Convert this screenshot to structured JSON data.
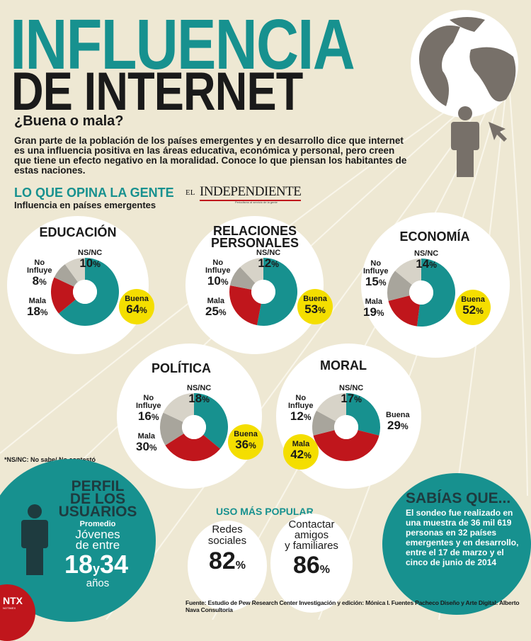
{
  "header": {
    "title_line1": "INFLUENCIA",
    "title_line2": "DE INTERNET",
    "subtitle": "¿Buena o mala?",
    "intro": "Gran parte de la población de los países emergentes y en desarrollo dice que internet es una influencia positiva en las áreas educativa, económica y personal, pero creen que tiene un efecto negativo en la moralidad. Conoce lo que piensan los habitantes de estas naciones."
  },
  "section": {
    "title": "LO QUE OPINA LA GENTE",
    "subtitle": "Influencia en países emergentes"
  },
  "logo": {
    "el": "EL",
    "name": "INDEPENDIENTE",
    "tagline": "Periodismo al servicio de la gente"
  },
  "labels": {
    "buena": "Buena",
    "mala": "Mala",
    "no_influye_1": "No",
    "no_influye_2": "Influye",
    "nsnc": "NS/NC"
  },
  "colors": {
    "buena": "#17918f",
    "mala": "#c0161c",
    "no_influye": "#a8a59c",
    "nsnc": "#d7d3c8",
    "highlight": "#f4de00",
    "background": "#eee8d3"
  },
  "chart_data": [
    {
      "type": "pie",
      "title": "EDUCACIÓN",
      "categories": [
        "Buena",
        "Mala",
        "No Influye",
        "NS/NC"
      ],
      "values": [
        64,
        18,
        8,
        10
      ]
    },
    {
      "type": "pie",
      "title": "RELACIONES PERSONALES",
      "categories": [
        "Buena",
        "Mala",
        "No Influye",
        "NS/NC"
      ],
      "values": [
        53,
        25,
        10,
        12
      ]
    },
    {
      "type": "pie",
      "title": "ECONOMÍA",
      "categories": [
        "Buena",
        "Mala",
        "No Influye",
        "NS/NC"
      ],
      "values": [
        52,
        19,
        15,
        14
      ]
    },
    {
      "type": "pie",
      "title": "POLÍTICA",
      "categories": [
        "Buena",
        "Mala",
        "No Influye",
        "NS/NC"
      ],
      "values": [
        36,
        30,
        16,
        18
      ]
    },
    {
      "type": "pie",
      "title": "MORAL",
      "categories": [
        "Buena",
        "Mala",
        "No Influye",
        "NS/NC"
      ],
      "values": [
        29,
        42,
        12,
        17
      ]
    }
  ],
  "charts_text": [
    {
      "title": "EDUCACIÓN",
      "buena": "64",
      "mala": "18",
      "no": "8",
      "ns": "10"
    },
    {
      "title": "RELACIONES",
      "title2": "PERSONALES",
      "buena": "53",
      "mala": "25",
      "no": "10",
      "ns": "12"
    },
    {
      "title": "ECONOMÍA",
      "buena": "52",
      "mala": "19",
      "no": "15",
      "ns": "14"
    },
    {
      "title": "POLÍTICA",
      "buena": "36",
      "mala": "30",
      "no": "16",
      "ns": "18"
    },
    {
      "title": "MORAL",
      "buena": "29",
      "mala": "42",
      "no": "12",
      "ns": "17"
    }
  ],
  "pct": "%",
  "note": "*NS/NC: No sabe/ No contestó",
  "perfil": {
    "t1": "PERFIL",
    "t2": "DE LOS",
    "t3": "USUARIOS",
    "promedio": "Promedio",
    "j1": "Jóvenes",
    "j2": "de entre",
    "a": "18",
    "y": "y",
    "b": "34",
    "anos": "años"
  },
  "uso": {
    "title": "USO MÁS POPULAR",
    "r1": "Redes",
    "r2": "sociales",
    "rv": "82",
    "c1": "Contactar",
    "c2": "amigos",
    "c3": "y familiares",
    "cv": "86"
  },
  "sabias": {
    "title": "SABÍAS QUE...",
    "text": "El sondeo fue realizado en una muestra de 36 mil 619 personas en 32 países emergentes y en desarrollo, entre el 17 de marzo y el cinco de junio de 2014"
  },
  "footer": {
    "ntx": "NTX",
    "notimex": "NOTIMEX",
    "text": "Fuente: Estudio de Pew Research Center  Investigación y edición: Mónica I. Fuentes Pacheco  Diseño y Arte Digital: Alberto Nava Consultoría"
  }
}
